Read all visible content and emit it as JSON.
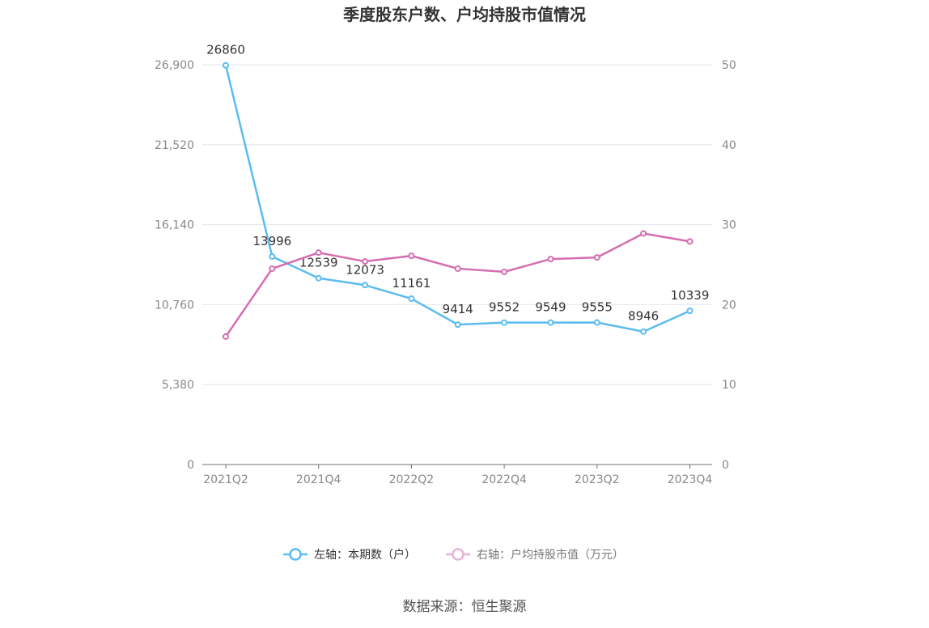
{
  "chart_data": {
    "type": "line",
    "title": "季度股东户数、户均持股市值情况",
    "categories": [
      "2021Q2",
      "2021Q3",
      "2021Q4",
      "2022Q1",
      "2022Q2",
      "2022Q3",
      "2022Q4",
      "2023Q1",
      "2023Q2",
      "2023Q3",
      "2023Q4"
    ],
    "x_tick_labels": [
      "2021Q2",
      "2021Q4",
      "2022Q2",
      "2022Q4",
      "2023Q2",
      "2023Q4"
    ],
    "left_axis": {
      "ylim": [
        0,
        26900
      ],
      "ticks": [
        "0",
        "5,380",
        "10,760",
        "16,140",
        "21,520",
        "26,900"
      ]
    },
    "right_axis": {
      "ylim": [
        0,
        50
      ],
      "ticks": [
        "0",
        "10",
        "20",
        "30",
        "40",
        "50"
      ]
    },
    "grid": true,
    "legend_position": "bottom",
    "series": [
      {
        "name": "左轴：本期数（户）",
        "axis": "left",
        "color": "#5bbcf0",
        "values": [
          26860,
          13996,
          12539,
          12073,
          11161,
          9414,
          9552,
          9549,
          9555,
          8946,
          10339
        ],
        "data_labels": [
          "26860",
          "13996",
          "12539",
          "12073",
          "11161",
          "9414",
          "9552",
          "9549",
          "9555",
          "8946",
          "10339"
        ]
      },
      {
        "name": "右轴：户均持股市值（万元）",
        "axis": "right",
        "color": "#d56db0",
        "values": [
          16.0,
          24.5,
          26.5,
          25.4,
          26.1,
          24.5,
          24.1,
          25.7,
          25.9,
          28.9,
          27.9
        ]
      }
    ]
  },
  "footer": {
    "source": "数据来源：恒生聚源"
  }
}
